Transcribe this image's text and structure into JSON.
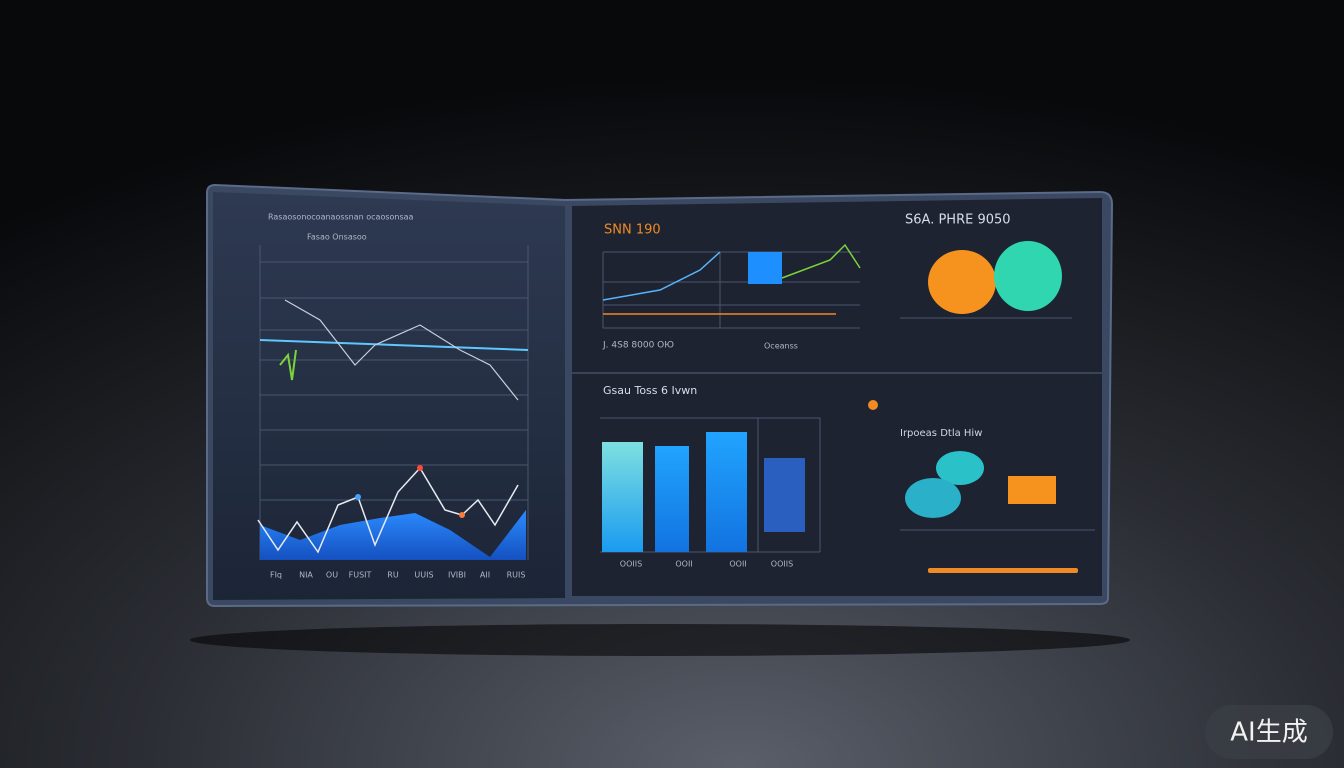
{
  "header": {
    "left_title": "Rasaosonocoanaossnan ocaosonsaa",
    "left_subtitle": "Fasao Onsasoo",
    "top_right_a": "SNN 190",
    "top_right_b": "S6A. PHRE 9050",
    "middle_caption_a": "J. 4S8 8000 OЮ",
    "middle_caption_b": "Oceanss",
    "bar_title": "Gsau  Toss 6 Ivwn",
    "bubble_title": "Irpoeas Dtla Hiw"
  },
  "left_x_labels": [
    "FIq",
    "NIA",
    "OU",
    "FUSIT",
    "RU",
    "UUIS",
    "IVIBI",
    "AII",
    "RUIS"
  ],
  "bar_labels": [
    "OOIIS",
    "OOII",
    "OOII",
    "OOIIS"
  ],
  "watermark": "AI生成"
}
